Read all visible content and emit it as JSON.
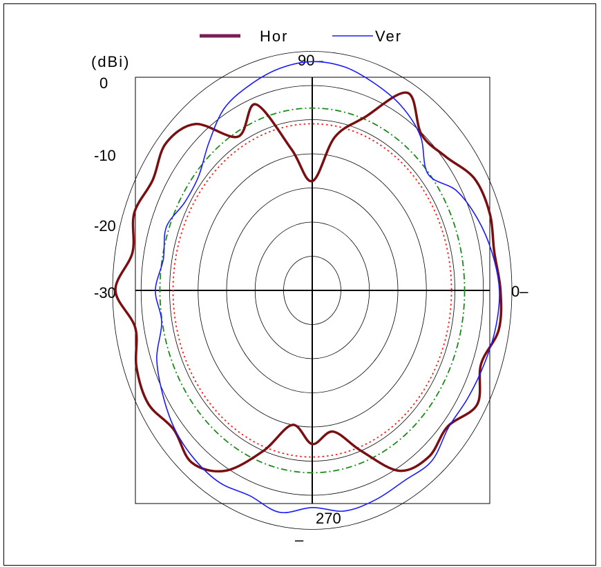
{
  "chart_data": {
    "type": "polar-line",
    "unit_label": "(dBi)",
    "radial_ticks": [
      "0",
      "-10",
      "-20",
      "-30"
    ],
    "radial_range_dbi": [
      -30,
      0
    ],
    "ring_values_dbi": [
      -25,
      -20,
      -15,
      -10,
      -5,
      0,
      5
    ],
    "angle_labels": {
      "deg0": "0–",
      "deg90": "90–",
      "deg270": "270",
      "deg270_mark": "–"
    },
    "legend": {
      "position": "top-center"
    },
    "reference_circles": [
      {
        "style": "dash-dot",
        "color": "#1a8a1a",
        "value_dbi": -3.3
      },
      {
        "style": "dotted",
        "color": "#ff1a1a",
        "value_dbi": -5.6
      }
    ],
    "series": [
      {
        "name": "Hor",
        "color": "#7a0f12",
        "angles_deg": [
          0,
          10,
          20,
          30,
          40,
          50,
          60,
          70,
          80,
          90,
          100,
          110,
          120,
          130,
          140,
          150,
          160,
          170,
          180,
          190,
          200,
          210,
          220,
          230,
          240,
          250,
          260,
          270,
          280,
          290,
          300,
          310,
          320,
          330,
          340,
          350
        ],
        "values_dbi": [
          3.0,
          2.4,
          3.1,
          2.8,
          0.5,
          -0.2,
          3.4,
          -3.0,
          -7.2,
          -14.0,
          -9.0,
          -1.0,
          -4.0,
          1.8,
          3.5,
          2.3,
          3.2,
          2.0,
          4.5,
          1.5,
          2.8,
          3.2,
          1.7,
          2.9,
          0.5,
          -5.0,
          -10.0,
          -7.5,
          -9.0,
          -5.0,
          0.5,
          1.8,
          1.0,
          3.4,
          1.5,
          3.2
        ]
      },
      {
        "name": "Ver",
        "color": "#1a1aff",
        "angles_deg": [
          0,
          10,
          20,
          30,
          40,
          50,
          60,
          70,
          80,
          90,
          100,
          110,
          120,
          130,
          140,
          150,
          160,
          170,
          180,
          190,
          200,
          210,
          220,
          230,
          240,
          250,
          260,
          270,
          280,
          290,
          300,
          310,
          320,
          330,
          340,
          350
        ],
        "values_dbi": [
          2.8,
          2.0,
          0.8,
          -0.8,
          -3.5,
          -0.5,
          1.2,
          2.2,
          3.2,
          3.5,
          3.0,
          2.0,
          0.8,
          -1.8,
          -4.0,
          -4.2,
          -2.8,
          -3.5,
          -2.5,
          -3.2,
          -1.0,
          0.3,
          1.5,
          2.2,
          2.5,
          2.0,
          3.0,
          1.8,
          2.8,
          2.6,
          2.2,
          2.6,
          1.2,
          1.5,
          2.0,
          2.6
        ]
      }
    ]
  }
}
